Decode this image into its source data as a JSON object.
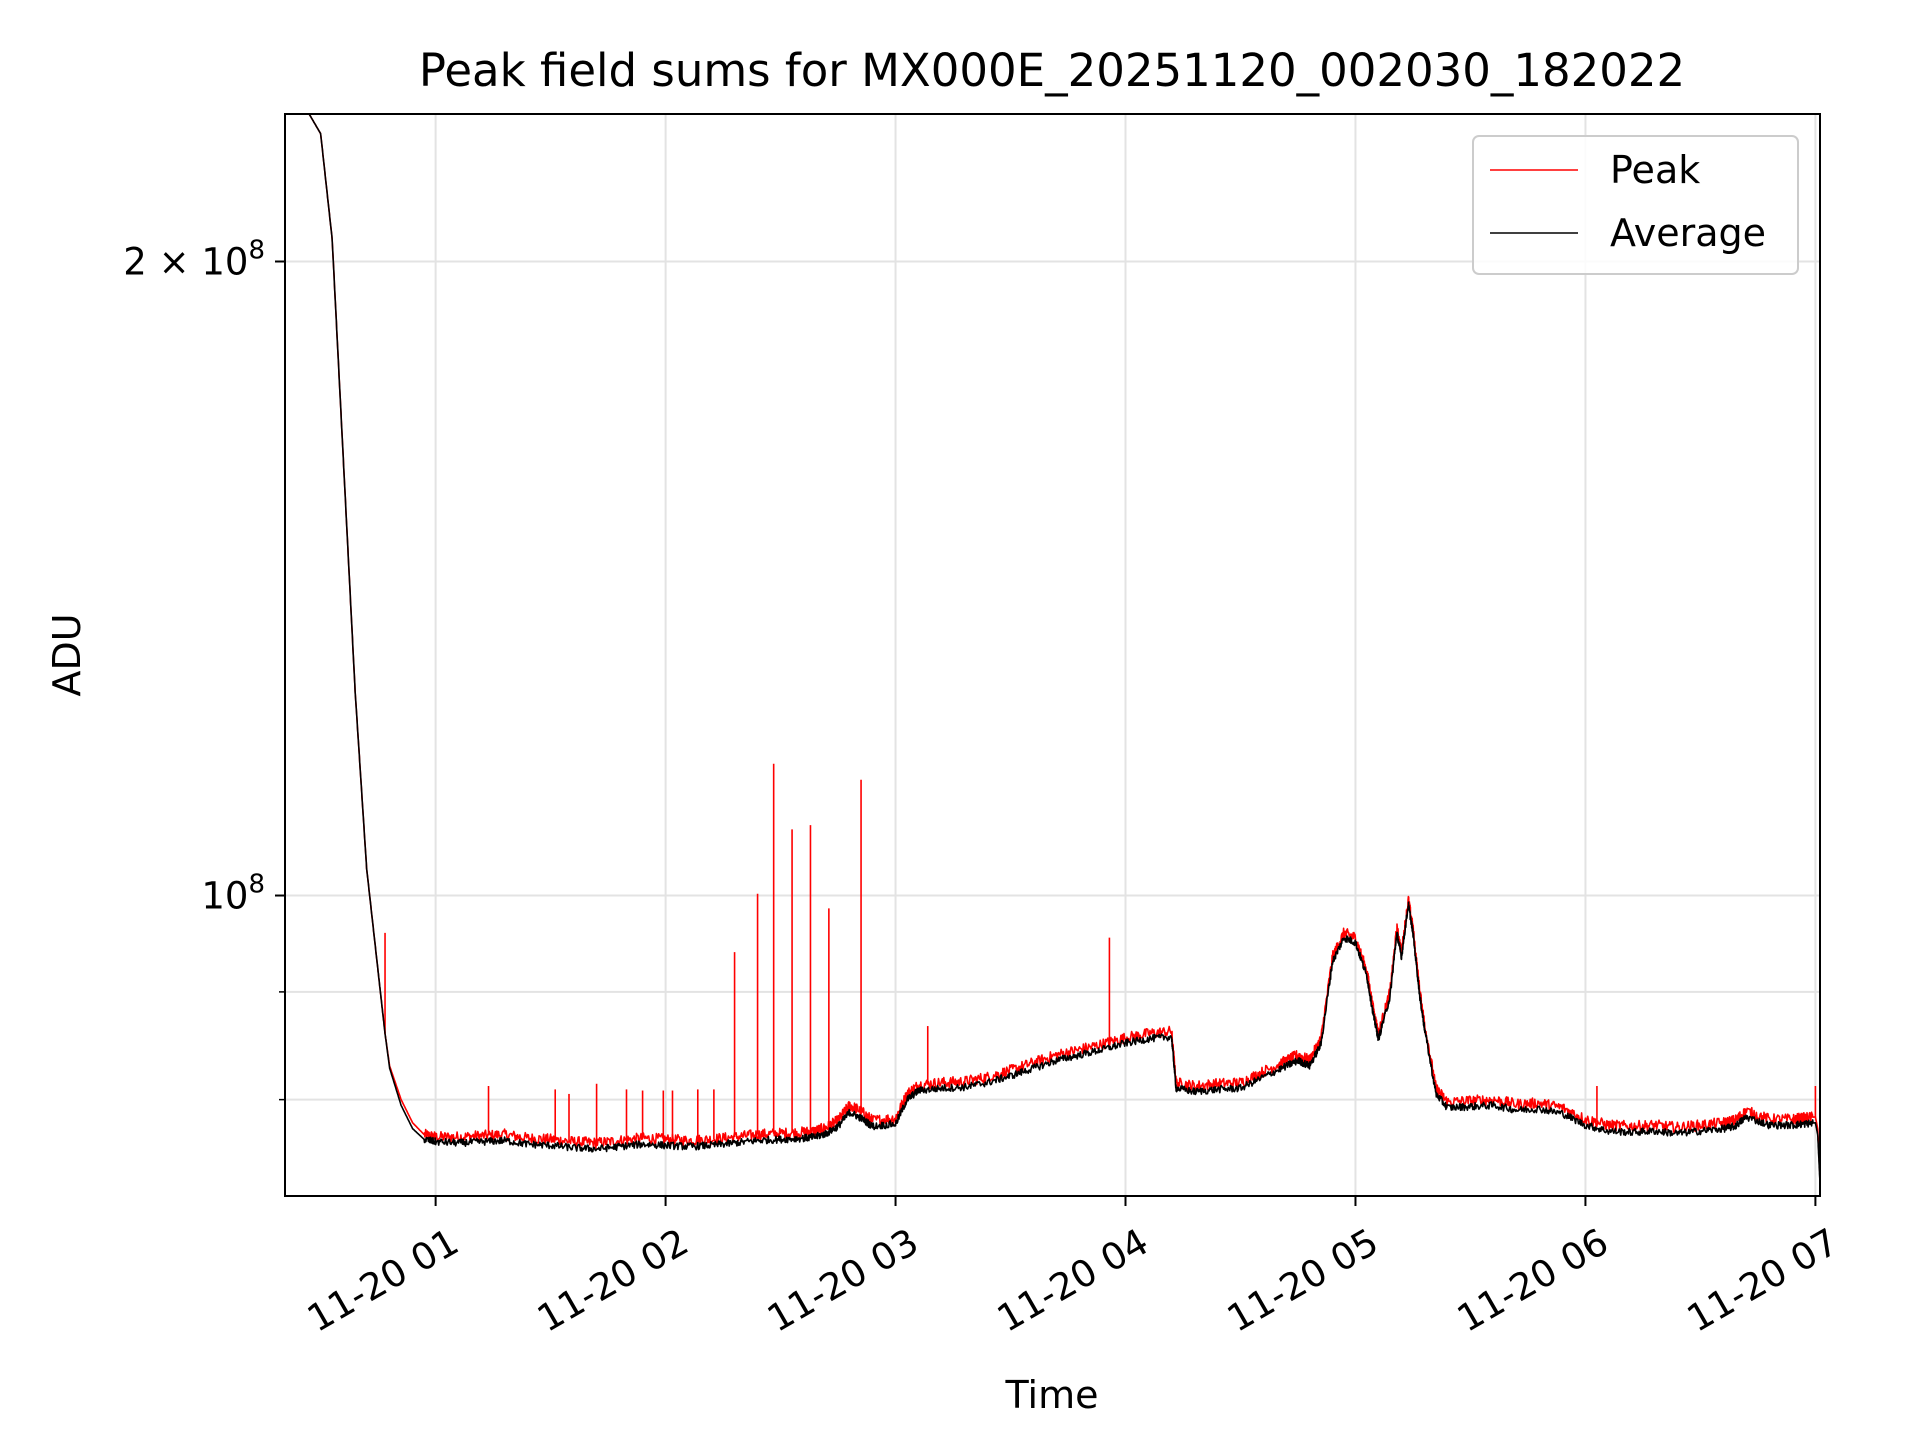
{
  "chart_data": {
    "type": "line",
    "title": "Peak field sums for MX000E_20251120_002030_182022",
    "xlabel": "Time",
    "ylabel": "ADU",
    "y_scale": "log",
    "xlim": [
      0.345,
      7.02
    ],
    "ylim": [
      72000000,
      235000000
    ],
    "x_ticks": [
      {
        "value": 1,
        "label": "11-20 01"
      },
      {
        "value": 2,
        "label": "11-20 02"
      },
      {
        "value": 3,
        "label": "11-20 03"
      },
      {
        "value": 4,
        "label": "11-20 04"
      },
      {
        "value": 5,
        "label": "11-20 05"
      },
      {
        "value": 6,
        "label": "11-20 06"
      },
      {
        "value": 7,
        "label": "11-20 07"
      }
    ],
    "y_major_ticks": [
      {
        "value": 200000000,
        "label_base": "2 × 10",
        "label_exp": "8"
      },
      {
        "value": 100000000,
        "label_base": "10",
        "label_exp": "8"
      }
    ],
    "y_minor_ticks": [
      80000000,
      90000000
    ],
    "grid": true,
    "legend_position": "top-right",
    "series": [
      {
        "name": "Peak",
        "color": "#ff0000",
        "x": [
          0.345,
          0.45,
          0.5,
          0.55,
          0.6,
          0.65,
          0.7,
          0.75,
          0.78,
          0.8,
          0.85,
          0.9,
          0.95,
          1.0,
          1.1,
          1.2,
          1.3,
          1.4,
          1.5,
          1.6,
          1.7,
          1.8,
          1.9,
          2.0,
          2.1,
          2.2,
          2.3,
          2.4,
          2.5,
          2.6,
          2.65,
          2.7,
          2.75,
          2.8,
          2.85,
          2.9,
          3.0,
          3.05,
          3.1,
          3.2,
          3.3,
          3.4,
          3.5,
          3.6,
          3.7,
          3.8,
          3.9,
          4.0,
          4.1,
          4.2,
          4.22,
          4.3,
          4.4,
          4.5,
          4.6,
          4.7,
          4.75,
          4.8,
          4.85,
          4.9,
          4.95,
          5.0,
          5.05,
          5.08,
          5.1,
          5.15,
          5.18,
          5.2,
          5.23,
          5.25,
          5.28,
          5.3,
          5.35,
          5.4,
          5.5,
          5.6,
          5.7,
          5.8,
          5.9,
          6.0,
          6.1,
          6.2,
          6.3,
          6.4,
          6.5,
          6.6,
          6.65,
          6.7,
          6.8,
          6.9,
          6.95,
          7.0,
          7.01,
          7.02
        ],
        "y": [
          235000000,
          235000000,
          230000000,
          205000000,
          160000000,
          125000000,
          103000000,
          92000000,
          86000000,
          83000000,
          80000000,
          78000000,
          77000000,
          76800000,
          76800000,
          76900000,
          77000000,
          76700000,
          76600000,
          76400000,
          76300000,
          76500000,
          76700000,
          76600000,
          76500000,
          76600000,
          76800000,
          77000000,
          77100000,
          77200000,
          77300000,
          77600000,
          78200000,
          79500000,
          79000000,
          78200000,
          78400000,
          80500000,
          81300000,
          81500000,
          81600000,
          82000000,
          82600000,
          83300000,
          84000000,
          84500000,
          85000000,
          85600000,
          86000000,
          86200000,
          81500000,
          81200000,
          81400000,
          81500000,
          82500000,
          83500000,
          84000000,
          83500000,
          85500000,
          93500000,
          96000000,
          95500000,
          92000000,
          88000000,
          86000000,
          90000000,
          96500000,
          94000000,
          99500000,
          96500000,
          90000000,
          87000000,
          81000000,
          79800000,
          79900000,
          80000000,
          79600000,
          79700000,
          79300000,
          78300000,
          77800000,
          77700000,
          77800000,
          77600000,
          77800000,
          78000000,
          78200000,
          79000000,
          78300000,
          78300000,
          78400000,
          78500000,
          77500000,
          73500000
        ]
      },
      {
        "name": "Average",
        "color": "#000000",
        "x": [
          0.345,
          0.45,
          0.5,
          0.55,
          0.6,
          0.65,
          0.7,
          0.75,
          0.78,
          0.8,
          0.85,
          0.9,
          0.95,
          1.0,
          1.1,
          1.2,
          1.3,
          1.4,
          1.5,
          1.6,
          1.7,
          1.8,
          1.9,
          2.0,
          2.1,
          2.2,
          2.3,
          2.4,
          2.5,
          2.6,
          2.65,
          2.7,
          2.75,
          2.8,
          2.85,
          2.9,
          3.0,
          3.05,
          3.1,
          3.2,
          3.3,
          3.4,
          3.5,
          3.6,
          3.7,
          3.8,
          3.9,
          4.0,
          4.1,
          4.2,
          4.22,
          4.3,
          4.4,
          4.5,
          4.6,
          4.7,
          4.75,
          4.8,
          4.85,
          4.9,
          4.95,
          5.0,
          5.05,
          5.08,
          5.1,
          5.15,
          5.18,
          5.2,
          5.23,
          5.25,
          5.28,
          5.3,
          5.35,
          5.4,
          5.5,
          5.6,
          5.7,
          5.8,
          5.9,
          6.0,
          6.1,
          6.2,
          6.3,
          6.4,
          6.5,
          6.6,
          6.65,
          6.7,
          6.8,
          6.9,
          6.95,
          7.0,
          7.01,
          7.02
        ],
        "y": [
          235000000,
          235000000,
          230000000,
          205000000,
          160000000,
          125000000,
          103000000,
          92000000,
          86000000,
          82800000,
          79500000,
          77500000,
          76600000,
          76400000,
          76300000,
          76400000,
          76500000,
          76200000,
          76100000,
          75900000,
          75800000,
          76000000,
          76200000,
          76100000,
          76000000,
          76100000,
          76300000,
          76500000,
          76600000,
          76700000,
          76800000,
          77100000,
          77700000,
          78900000,
          78400000,
          77700000,
          77900000,
          80000000,
          80800000,
          81000000,
          81100000,
          81500000,
          82100000,
          82800000,
          83500000,
          84000000,
          84500000,
          85100000,
          85500000,
          85700000,
          81000000,
          80700000,
          80900000,
          81000000,
          82000000,
          83000000,
          83500000,
          83000000,
          85000000,
          93000000,
          95500000,
          95000000,
          91500000,
          87500000,
          85500000,
          89500000,
          96000000,
          93500000,
          99000000,
          96000000,
          89500000,
          86500000,
          80500000,
          79300000,
          79400000,
          79500000,
          79100000,
          79200000,
          78800000,
          77800000,
          77300000,
          77200000,
          77300000,
          77100000,
          77300000,
          77500000,
          77700000,
          78500000,
          77800000,
          77800000,
          77900000,
          78000000,
          77000000,
          73000000
        ]
      }
    ],
    "spikes": [
      {
        "x": 0.78,
        "y": 96000000
      },
      {
        "x": 1.23,
        "y": 81200000
      },
      {
        "x": 1.52,
        "y": 80900000
      },
      {
        "x": 1.58,
        "y": 80500000
      },
      {
        "x": 1.7,
        "y": 81400000
      },
      {
        "x": 1.83,
        "y": 80900000
      },
      {
        "x": 1.9,
        "y": 80800000
      },
      {
        "x": 1.99,
        "y": 80800000
      },
      {
        "x": 2.03,
        "y": 80800000
      },
      {
        "x": 2.14,
        "y": 80900000
      },
      {
        "x": 2.21,
        "y": 80900000
      },
      {
        "x": 2.3,
        "y": 94000000
      },
      {
        "x": 2.4,
        "y": 100200000
      },
      {
        "x": 2.47,
        "y": 115500000
      },
      {
        "x": 2.55,
        "y": 107500000
      },
      {
        "x": 2.63,
        "y": 108000000
      },
      {
        "x": 2.71,
        "y": 98600000
      },
      {
        "x": 2.85,
        "y": 113500000
      },
      {
        "x": 3.14,
        "y": 86700000
      },
      {
        "x": 3.93,
        "y": 95500000
      },
      {
        "x": 6.05,
        "y": 81200000
      },
      {
        "x": 7.0,
        "y": 81200000
      }
    ]
  }
}
